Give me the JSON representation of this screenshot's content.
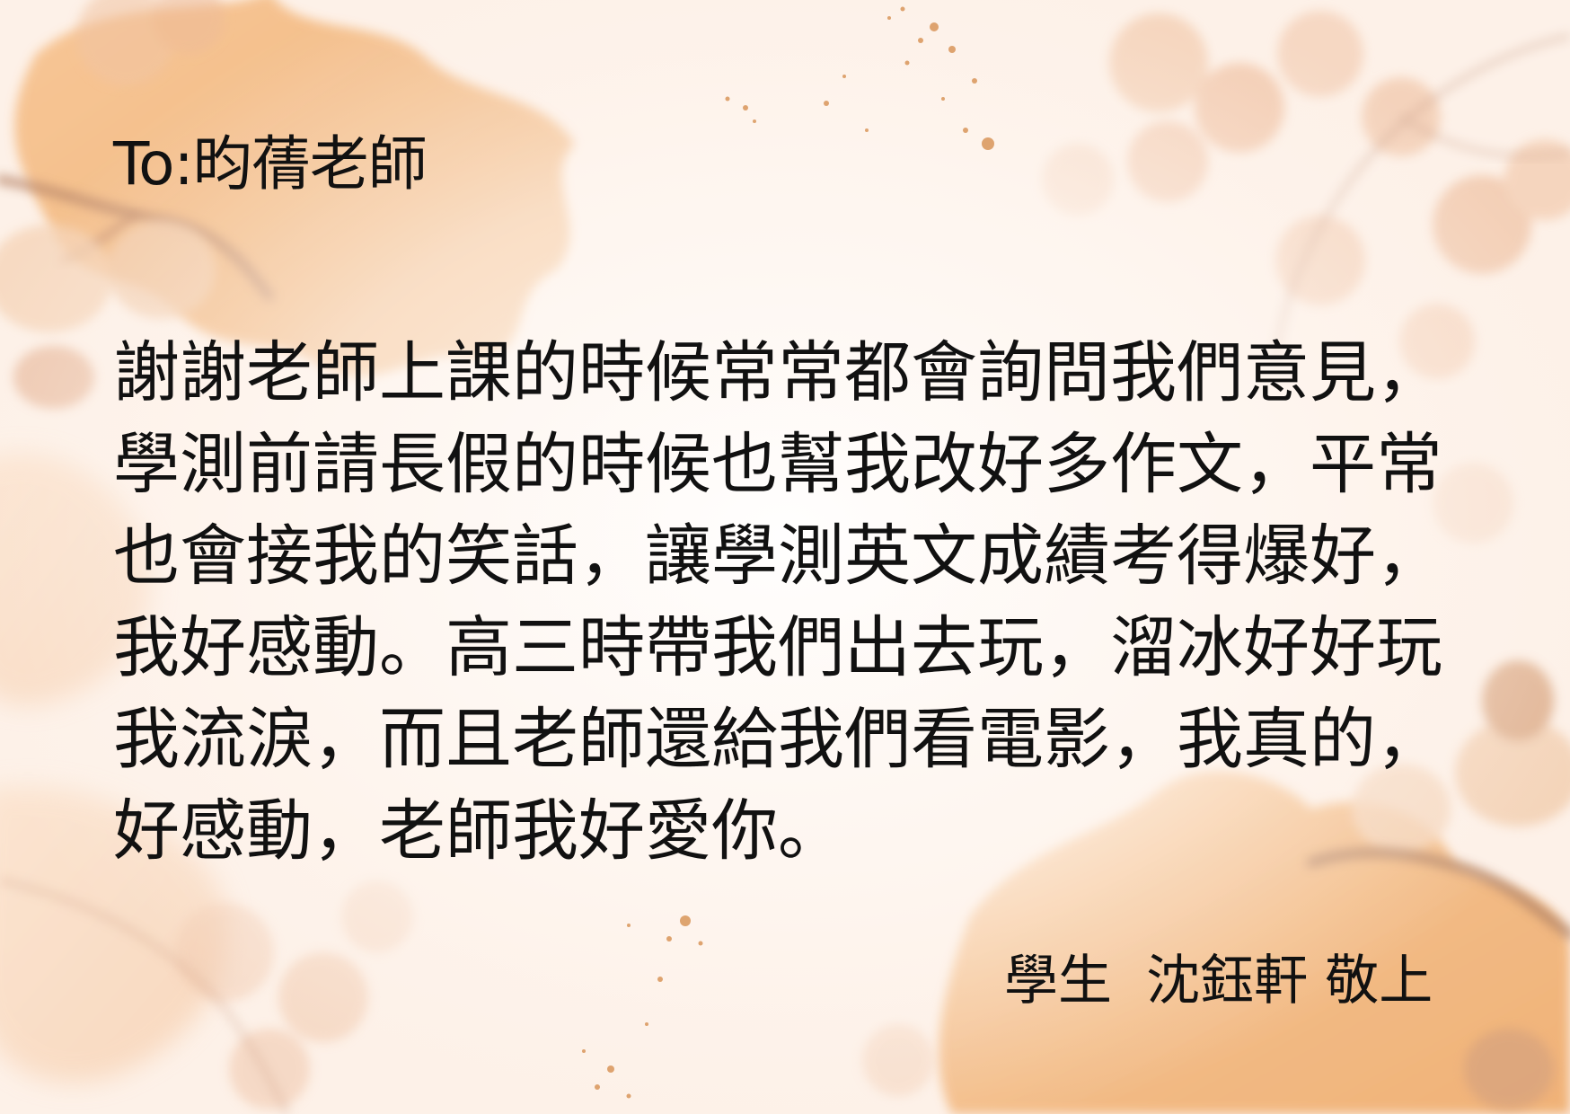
{
  "letter": {
    "greeting": "To:昀蒨老師",
    "body_lines": [
      "謝謝老師上課的時候常常都會詢問我們意見，",
      "學測前請長假的時候也幫我改好多作文，平常",
      "也會接我的笑話，讓學測英文成績考得爆好，",
      "我好感動。高三時帶我們出去玩，溜冰好好玩",
      "我流淚，而且老師還給我們看電影，我真的，",
      "好感動，老師我好愛你。"
    ],
    "signature": "學生  沈鈺軒 敬上"
  },
  "colors": {
    "background": "#fdf3ec",
    "leaf_orange": "#f3b06f",
    "leaf_light": "#f8d3b0",
    "berry": "#f0c3a6",
    "branch": "#b8866a",
    "text": "#111111"
  },
  "decorations": {
    "icons": [
      "oak-leaf-icon",
      "acorn-icon",
      "berry-cluster-icon",
      "branch-icon",
      "gold-speckle-icon"
    ]
  }
}
